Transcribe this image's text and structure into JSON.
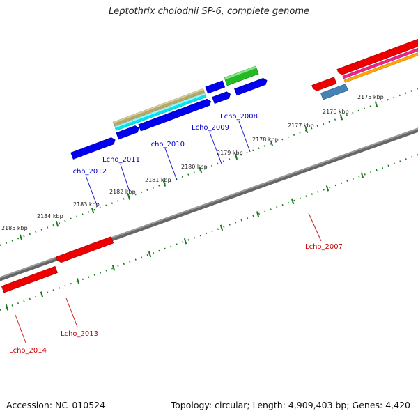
{
  "title": "Leptothrix cholodnii SP-6, complete genome",
  "accession_line": "Accession: NC_010524",
  "summary_line": "Topology: circular; Length: 4,909,403 bp; Genes: 4,420",
  "tick_labels": [
    "2175 kbp",
    "2176 kbp",
    "2177 kbp",
    "2178 kbp",
    "2179 kbp",
    "2180 kbp",
    "2181 kbp",
    "2182 kbp",
    "2183 kbp",
    "2184 kbp",
    "2185 kbp"
  ],
  "upper_gene_labels": [
    "Lcho_2008",
    "Lcho_2009",
    "Lcho_2010",
    "Lcho_2011",
    "Lcho_2012"
  ],
  "lower_gene_labels": [
    "Lcho_2007",
    "Lcho_2013",
    "Lcho_2014"
  ],
  "colors": {
    "backbone": "#808080",
    "ticks": "#1a7a1a",
    "forward_strand": "#0000ee",
    "reverse_strand": "#ee0000",
    "rrna": "#22bb22",
    "trna": "#00e5ee",
    "misc_rna": "#b5a86a",
    "pink_feature": "#ee2288",
    "orange_feature": "#ffa500",
    "steelblue_feature": "#4682b4",
    "upper_label": "#0000cc",
    "lower_label": "#cc0000"
  }
}
